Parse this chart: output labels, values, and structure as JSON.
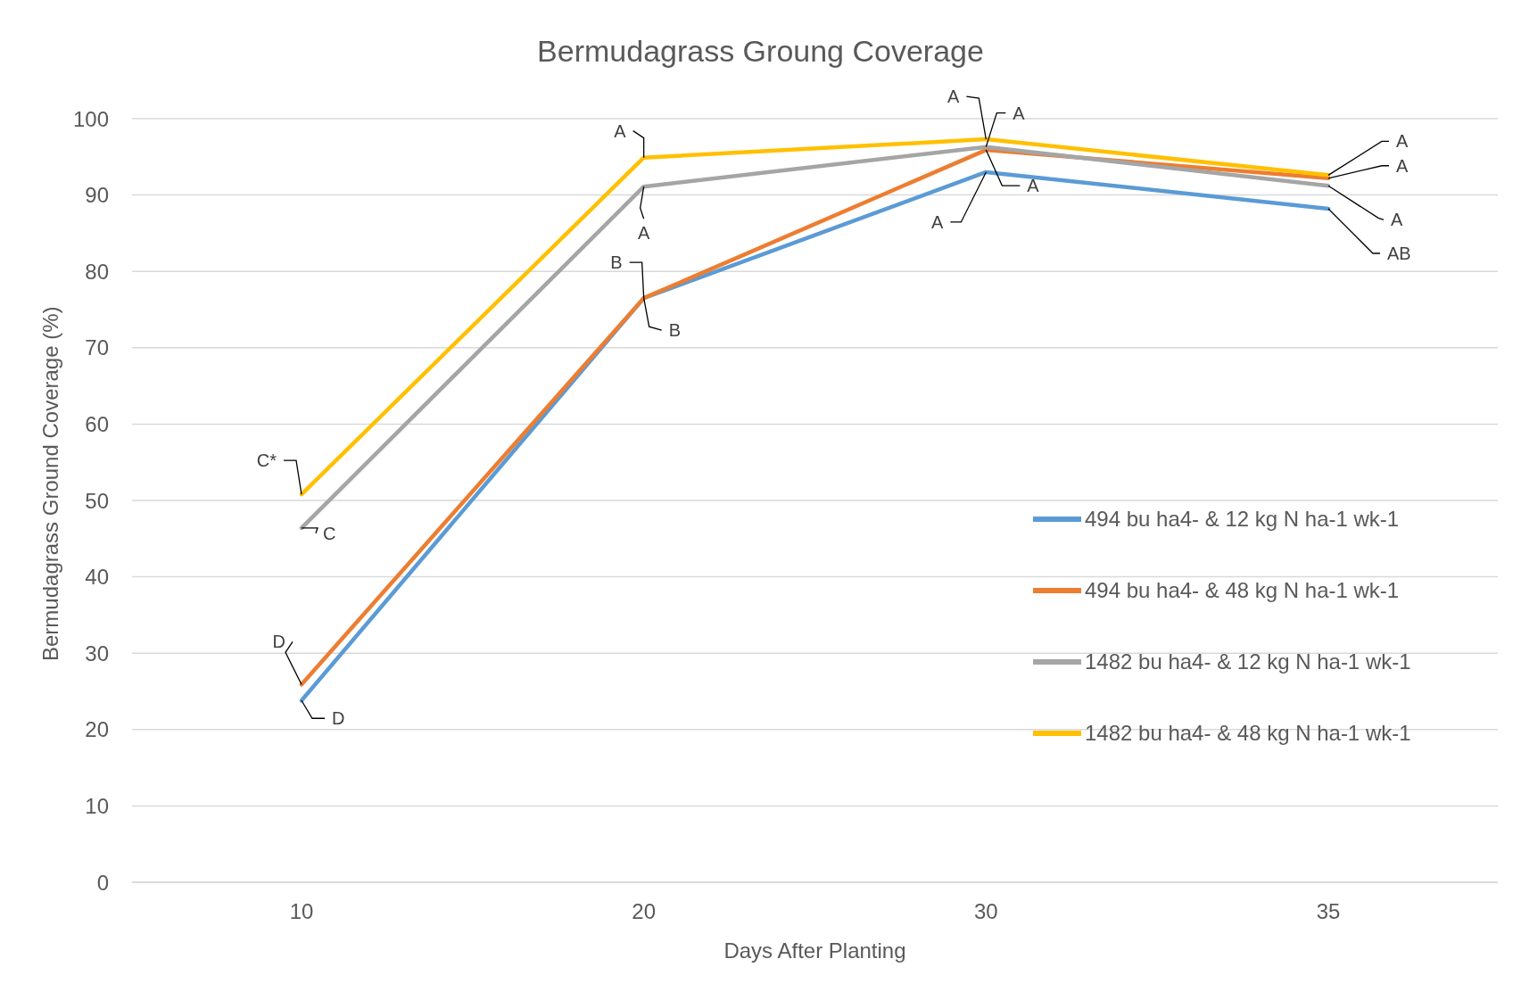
{
  "chart_data": {
    "type": "line",
    "title": "Bermudagrass Groung Coverage",
    "xlabel": "Days After Planting",
    "ylabel": "Bermudagrass Ground Coverage (%)",
    "categories": [
      "10",
      "20",
      "30",
      "35"
    ],
    "series": [
      {
        "name": "494 bu ha4- & 12 kg N ha-1 wk-1",
        "color": "#5b9bd5",
        "values": [
          23.8,
          76.5,
          93,
          88.2
        ]
      },
      {
        "name": "494 bu ha4- & 48 kg N ha-1 wk-1",
        "color": "#ed7d31",
        "values": [
          25.9,
          76.5,
          95.9,
          92.2
        ]
      },
      {
        "name": "1482 bu ha4- & 12 kg N ha-1 wk-1",
        "color": "#a5a5a5",
        "values": [
          46.4,
          91.1,
          96.3,
          91.2
        ]
      },
      {
        "name": "1482 bu ha4- & 48 kg N ha-1 wk-1",
        "color": "#ffc000",
        "values": [
          50.8,
          94.9,
          97.3,
          92.6
        ]
      }
    ],
    "ylim": [
      0,
      100
    ],
    "yticks": [
      0,
      10,
      20,
      30,
      40,
      50,
      60,
      70,
      80,
      90,
      100
    ],
    "grid": "y",
    "legend": "right",
    "marker": "none",
    "line_style": "solid",
    "annotations": [
      {
        "text": "C*",
        "x": "10",
        "y": 50.8
      },
      {
        "text": "C",
        "x": "10",
        "y": 46.4
      },
      {
        "text": "D",
        "x": "10",
        "y": 25.9
      },
      {
        "text": "D",
        "x": "10",
        "y": 23.8
      },
      {
        "text": "A",
        "x": "20",
        "y": 94.9
      },
      {
        "text": "A",
        "x": "20",
        "y": 91.1
      },
      {
        "text": "B",
        "x": "20",
        "y": 76.5
      },
      {
        "text": "B",
        "x": "20",
        "y": 76.5
      },
      {
        "text": "A",
        "x": "30",
        "y": 97.3
      },
      {
        "text": "A",
        "x": "30",
        "y": 96.3
      },
      {
        "text": "A",
        "x": "30",
        "y": 95.9
      },
      {
        "text": "A",
        "x": "30",
        "y": 93
      },
      {
        "text": "A",
        "x": "35",
        "y": 92.6
      },
      {
        "text": "A",
        "x": "35",
        "y": 92.2
      },
      {
        "text": "A",
        "x": "35",
        "y": 91.2
      },
      {
        "text": "AB",
        "x": "35",
        "y": 88.2
      }
    ]
  }
}
